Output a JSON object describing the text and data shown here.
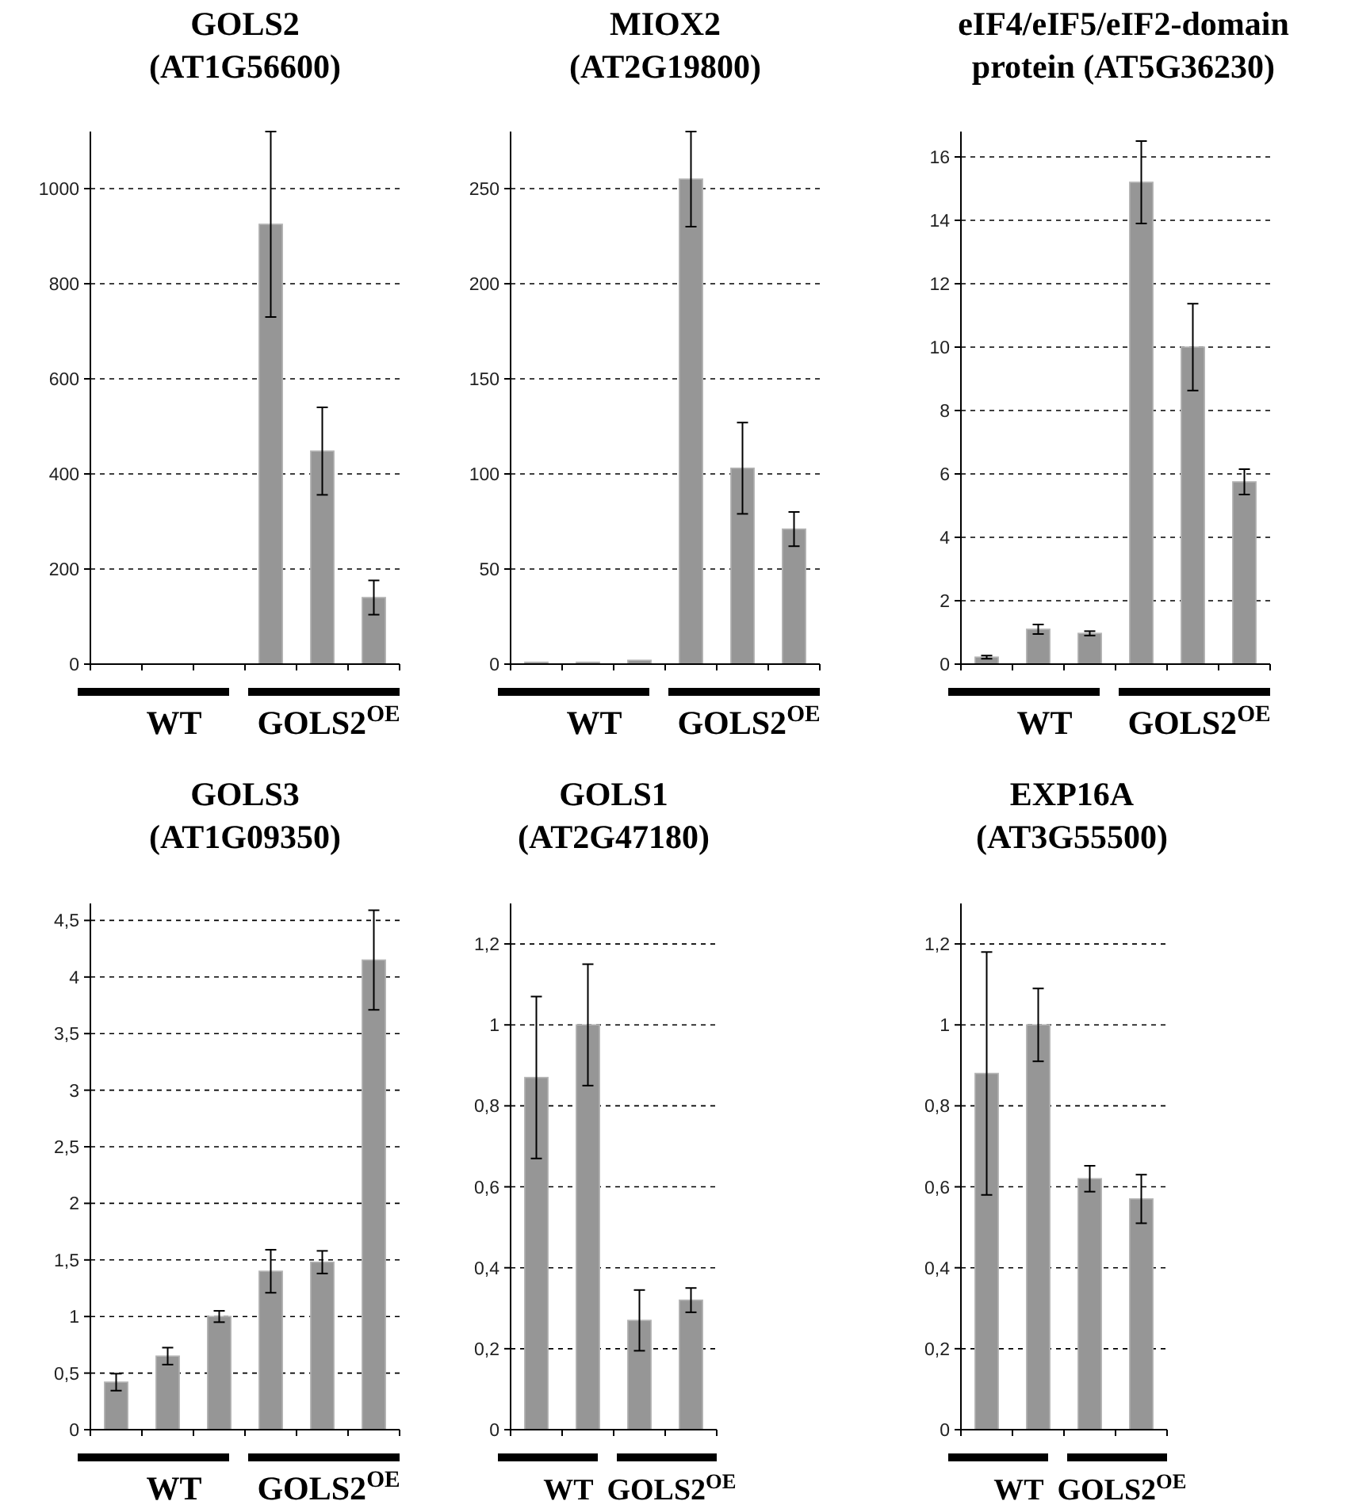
{
  "chart_data": [
    {
      "type": "bar",
      "title": "GOLS2\n(AT1G56600)",
      "categories": [
        null,
        null,
        null,
        null,
        null,
        null
      ],
      "values": [
        0,
        0,
        0,
        925,
        448,
        140
      ],
      "errors": [
        null,
        null,
        null,
        195,
        92,
        36
      ],
      "color": "#969696",
      "ylim": [
        0,
        1120
      ],
      "yticks": [
        0,
        200,
        400,
        600,
        800,
        1000
      ],
      "grid": "y",
      "annotations": [
        "WT",
        "GOLS2$^{OE}$"
      ]
    },
    {
      "type": "bar",
      "title": "MIOX2\n(AT2G19800)",
      "categories": [
        null,
        null,
        null,
        null,
        null,
        null
      ],
      "values": [
        1,
        1,
        2,
        255,
        103,
        71
      ],
      "errors": [
        null,
        null,
        null,
        25,
        24,
        9
      ],
      "color": "#969696",
      "ylim": [
        0,
        280
      ],
      "yticks": [
        0,
        50,
        100,
        150,
        200,
        250
      ],
      "grid": "y",
      "annotations": [
        "WT",
        "GOLS2$^{OE}$"
      ]
    },
    {
      "type": "bar",
      "title": "eIF4/eIF5/eIF2-domain\nprotein (AT5G36230)",
      "categories": [
        null,
        null,
        null,
        null,
        null,
        null
      ],
      "values": [
        0.22,
        1.1,
        0.97,
        15.2,
        10,
        5.75
      ],
      "errors": [
        0.05,
        0.15,
        0.07,
        1.3,
        1.37,
        0.4
      ],
      "color": "#969696",
      "ylim": [
        0,
        16.8
      ],
      "yticks": [
        0,
        2,
        4,
        6,
        8,
        10,
        12,
        14,
        16
      ],
      "grid": "y",
      "annotations": [
        "WT",
        "GOLS2$^{OE}$"
      ]
    },
    {
      "type": "bar",
      "title": "GOLS3\n(AT1G09350)",
      "categories": [
        null,
        null,
        null,
        null,
        null,
        null
      ],
      "values": [
        0.42,
        0.65,
        1.0,
        1.4,
        1.48,
        4.15
      ],
      "errors": [
        0.075,
        0.075,
        0.05,
        0.19,
        0.1,
        0.44
      ],
      "color": "#969696",
      "ylim": [
        0,
        4.65
      ],
      "yticks": [
        0,
        {
          "value": 0.5,
          "label": "0,5"
        },
        1,
        {
          "value": 1.5,
          "label": "1,5"
        },
        2,
        {
          "value": 2.5,
          "label": "2,5"
        },
        3,
        {
          "value": 3.5,
          "label": "3,5"
        },
        4,
        {
          "value": 4.5,
          "label": "4,5"
        }
      ],
      "grid": "y",
      "annotations": [
        "WT",
        "GOLS2$^{OE}$"
      ]
    },
    {
      "type": "bar",
      "title": "GOLS1\n(AT2G47180)",
      "categories": [
        null,
        null,
        null,
        null
      ],
      "values": [
        0.87,
        1.0,
        0.27,
        0.32
      ],
      "errors": [
        0.2,
        0.15,
        0.075,
        0.03
      ],
      "color": "#969696",
      "ylim": [
        0,
        1.3
      ],
      "yticks": [
        0,
        {
          "value": 0.2,
          "label": "0,2"
        },
        {
          "value": 0.4,
          "label": "0,4"
        },
        {
          "value": 0.6,
          "label": "0,6"
        },
        {
          "value": 0.8,
          "label": "0,8"
        },
        1,
        {
          "value": 1.2,
          "label": "1,2"
        }
      ],
      "grid": "y",
      "annotations": [
        "WT",
        "GOLS2$^{OE}$"
      ]
    },
    {
      "type": "bar",
      "title": "EXP16A\n(AT3G55500)",
      "categories": [
        null,
        null,
        null,
        null
      ],
      "values": [
        0.88,
        1.0,
        0.62,
        0.57
      ],
      "errors": [
        0.3,
        0.09,
        0.032,
        0.06
      ],
      "color": "#969696",
      "ylim": [
        0,
        1.3
      ],
      "yticks": [
        0,
        {
          "value": 0.2,
          "label": "0,2"
        },
        {
          "value": 0.4,
          "label": "0,4"
        },
        {
          "value": 0.6,
          "label": "0,6"
        },
        {
          "value": 0.8,
          "label": "0,8"
        },
        1,
        {
          "value": 1.2,
          "label": "1,2"
        }
      ],
      "grid": "y",
      "annotations": [
        "WT",
        "GOLS2$^{OE}$"
      ]
    }
  ]
}
